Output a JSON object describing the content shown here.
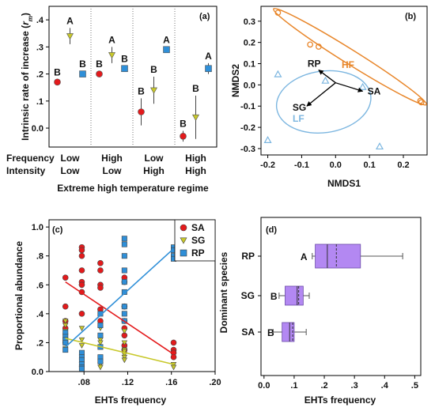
{
  "colors": {
    "SA": "#e31a1c",
    "SG": "#c8c82a",
    "RP": "#2f8fd8",
    "HF": "#e8862a",
    "LF": "#7cb6e0",
    "box": "#b388f2",
    "axis": "#000000"
  },
  "chart_data": [
    {
      "panel_label": "(a)",
      "type": "scatter",
      "ylabel": "Intrinsic rate of increase (r_m)",
      "ylabel_main": "Intrinsic rate of increase (",
      "ylabel_var": "r",
      "ylabel_sub": "m",
      "ylabel_close": ")",
      "xlabel": "Extreme high temperature regime",
      "ylim": [
        -0.07,
        0.45
      ],
      "yticks": [
        0.0,
        0.1,
        0.2,
        0.3,
        0.4
      ],
      "ytick_labels": [
        "0.0",
        ".1",
        ".2",
        ".3",
        ".4"
      ],
      "row_labels": [
        "Frequency",
        "Intensity"
      ],
      "groups": [
        {
          "frequency": "Low",
          "intensity": "Low"
        },
        {
          "frequency": "High",
          "intensity": "Low"
        },
        {
          "frequency": "Low",
          "intensity": "High"
        },
        {
          "frequency": "High",
          "intensity": "High"
        }
      ],
      "series": [
        {
          "name": "SA",
          "values": [
            0.17,
            0.2,
            0.06,
            -0.03
          ],
          "err": [
            0.01,
            0.01,
            0.05,
            0.02
          ],
          "letters": [
            "B",
            "B",
            "B",
            "B"
          ]
        },
        {
          "name": "SG",
          "values": [
            0.34,
            0.27,
            0.14,
            0.04
          ],
          "err": [
            0.03,
            0.03,
            0.05,
            0.08
          ],
          "letters": [
            "A",
            "A",
            "B",
            "B"
          ]
        },
        {
          "name": "RP",
          "values": [
            0.2,
            0.22,
            0.29,
            0.22
          ],
          "err": [
            0.01,
            0.01,
            0.01,
            0.02
          ],
          "letters": [
            "B",
            "B",
            "A",
            "A"
          ]
        }
      ]
    },
    {
      "panel_label": "(b)",
      "type": "scatter",
      "xlabel": "NMDS1",
      "ylabel": "NMDS2",
      "xlim": [
        -0.22,
        0.27
      ],
      "ylim": [
        -0.33,
        0.37
      ],
      "xticks": [
        -0.2,
        -0.1,
        0.0,
        0.1,
        0.2
      ],
      "xtick_labels": [
        "-0.2",
        "-0.1",
        "0.0",
        "0.1",
        "0.2"
      ],
      "yticks": [
        -0.3,
        -0.2,
        -0.1,
        0.0,
        0.1,
        0.2,
        0.3
      ],
      "ytick_labels": [
        "-0.3",
        "-0.2",
        "-0.1",
        "0.0",
        "0.1",
        "0.2",
        "0.3"
      ],
      "groups": [
        {
          "name": "HF",
          "marker": "circle",
          "points": [
            [
              -0.17,
              0.34
            ],
            [
              -0.075,
              0.19
            ],
            [
              -0.05,
              0.18
            ],
            [
              0.25,
              -0.075
            ],
            [
              0.253,
              -0.082
            ]
          ]
        },
        {
          "name": "LF",
          "marker": "triangle",
          "points": [
            [
              -0.17,
              0.05
            ],
            [
              -0.2,
              -0.26
            ],
            [
              -0.03,
              0.02
            ],
            [
              0.08,
              -0.01
            ],
            [
              0.13,
              -0.29
            ]
          ]
        }
      ],
      "vectors": [
        {
          "name": "RP",
          "x": -0.05,
          "y": 0.06
        },
        {
          "name": "SA",
          "x": 0.08,
          "y": -0.04
        },
        {
          "name": "SG",
          "x": -0.085,
          "y": -0.11
        }
      ]
    },
    {
      "panel_label": "(c)",
      "type": "scatter",
      "xlabel": "EHTs frequency",
      "ylabel": "Proportional abundance",
      "xlim": [
        0.048,
        0.2
      ],
      "ylim": [
        0.0,
        1.05
      ],
      "xticks": [
        0.08,
        0.12,
        0.16,
        0.2
      ],
      "xtick_labels": [
        ".08",
        ".12",
        ".16",
        ".20"
      ],
      "yticks": [
        0.0,
        0.2,
        0.4,
        0.6,
        0.8,
        1.0
      ],
      "ytick_labels": [
        "0.0",
        ".2",
        ".4",
        ".6",
        ".8",
        "1.0"
      ],
      "legend_position": "top-right",
      "series": [
        {
          "name": "SA",
          "marker": "circle",
          "x": [
            0.063,
            0.063,
            0.063,
            0.063,
            0.063,
            0.078,
            0.078,
            0.078,
            0.078,
            0.078,
            0.078,
            0.078,
            0.078,
            0.095,
            0.095,
            0.095,
            0.095,
            0.095,
            0.095,
            0.117,
            0.117,
            0.117,
            0.117,
            0.117,
            0.117,
            0.117,
            0.117,
            0.162,
            0.162,
            0.162,
            0.162
          ],
          "y": [
            0.65,
            0.45,
            0.35,
            0.3,
            0.2,
            0.86,
            0.84,
            0.8,
            0.7,
            0.62,
            0.6,
            0.55,
            0.4,
            0.75,
            0.7,
            0.6,
            0.58,
            0.43,
            0.35,
            0.65,
            0.62,
            0.45,
            0.35,
            0.3,
            0.25,
            0.18,
            0.15,
            0.2,
            0.15,
            0.13,
            0.1
          ],
          "trend": [
            [
              0.063,
              0.62
            ],
            [
              0.162,
              0.12
            ]
          ]
        },
        {
          "name": "SG",
          "marker": "triangle",
          "x": [
            0.063,
            0.063,
            0.063,
            0.063,
            0.063,
            0.078,
            0.078,
            0.078,
            0.078,
            0.078,
            0.095,
            0.095,
            0.095,
            0.095,
            0.095,
            0.117,
            0.117,
            0.117,
            0.117,
            0.117,
            0.117,
            0.117,
            0.162,
            0.162
          ],
          "y": [
            0.35,
            0.32,
            0.28,
            0.25,
            0.16,
            0.3,
            0.22,
            0.18,
            0.05,
            0.02,
            0.3,
            0.22,
            0.2,
            0.05,
            0.03,
            0.28,
            0.2,
            0.15,
            0.14,
            0.12,
            0.1,
            0.08,
            0.05,
            0.03
          ],
          "trend": [
            [
              0.063,
              0.23
            ],
            [
              0.162,
              0.05
            ]
          ]
        },
        {
          "name": "RP",
          "marker": "square",
          "x": [
            0.063,
            0.063,
            0.063,
            0.063,
            0.063,
            0.078,
            0.078,
            0.078,
            0.078,
            0.078,
            0.078,
            0.095,
            0.095,
            0.095,
            0.095,
            0.095,
            0.095,
            0.117,
            0.117,
            0.117,
            0.117,
            0.117,
            0.117,
            0.117,
            0.117,
            0.117,
            0.162,
            0.162,
            0.162,
            0.162
          ],
          "y": [
            0.27,
            0.24,
            0.22,
            0.2,
            0.15,
            0.13,
            0.1,
            0.08,
            0.05,
            0.03,
            0.02,
            0.4,
            0.32,
            0.25,
            0.17,
            0.1,
            0.07,
            0.92,
            0.88,
            0.8,
            0.7,
            0.62,
            0.55,
            0.45,
            0.4,
            0.35,
            0.86,
            0.84,
            0.8,
            0.78
          ],
          "trend": [
            [
              0.063,
              0.17
            ],
            [
              0.162,
              0.85
            ]
          ]
        }
      ]
    },
    {
      "panel_label": "(d)",
      "type": "boxplot",
      "xlabel": "EHTs frequency",
      "ylabel": "Dominant species",
      "xlim": [
        -0.01,
        0.52
      ],
      "xticks": [
        0.0,
        0.1,
        0.2,
        0.3,
        0.4,
        0.5
      ],
      "xtick_labels": [
        "0.0",
        ".1",
        ".2",
        ".3",
        ".4",
        ".5"
      ],
      "categories": [
        "RP",
        "SG",
        "SA"
      ],
      "boxes": [
        {
          "name": "RP",
          "min": 0.16,
          "q1": 0.17,
          "median": 0.21,
          "mean": 0.24,
          "q3": 0.32,
          "max": 0.46,
          "letter": "A"
        },
        {
          "name": "SG",
          "min": 0.05,
          "q1": 0.07,
          "median": 0.11,
          "mean": 0.115,
          "q3": 0.13,
          "max": 0.15,
          "letter": "B"
        },
        {
          "name": "SA",
          "min": 0.03,
          "q1": 0.06,
          "median": 0.085,
          "mean": 0.095,
          "q3": 0.1,
          "max": 0.14,
          "letter": "B"
        }
      ]
    }
  ]
}
